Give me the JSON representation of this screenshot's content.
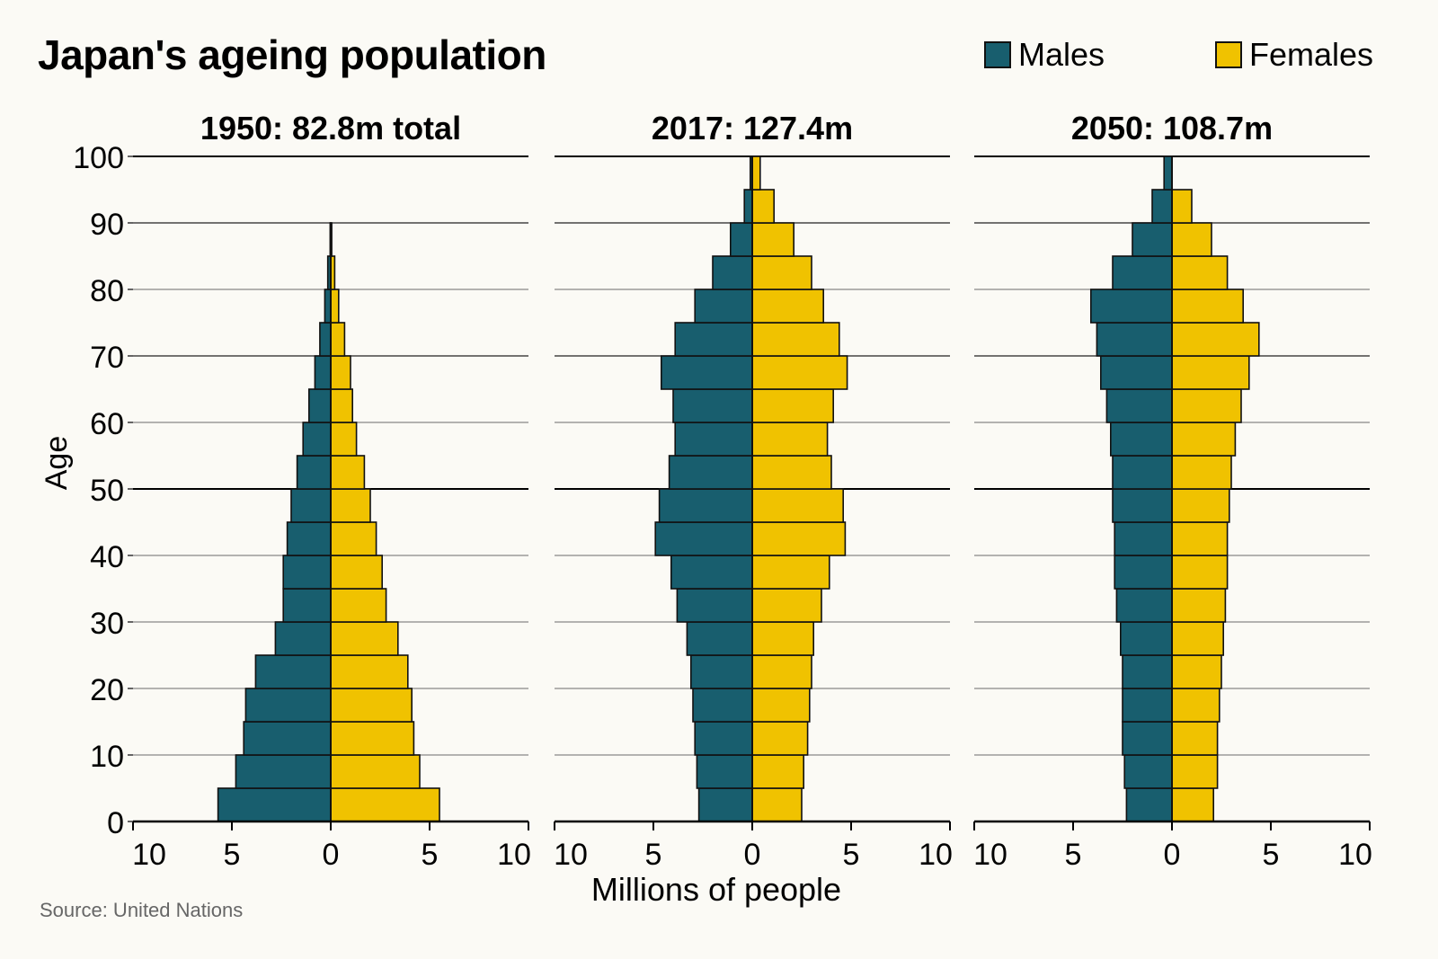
{
  "chart_data": {
    "type": "bar",
    "subtype": "population-pyramid",
    "title": "Japan's ageing population",
    "source": "Source: United Nations",
    "xlabel": "Millions of people",
    "ylabel": "Age",
    "legend": {
      "placement": "top-right",
      "entries": [
        {
          "name": "Males",
          "color": "#185e6e"
        },
        {
          "name": "Females",
          "color": "#f0c200"
        }
      ]
    },
    "y_ticks": [
      "0",
      "10",
      "20",
      "30",
      "40",
      "50",
      "60",
      "70",
      "80",
      "90",
      "100"
    ],
    "ylim": [
      0,
      100
    ],
    "x_ticks": [
      "10",
      "5",
      "0",
      "5",
      "10"
    ],
    "xlim": [
      -10,
      10
    ],
    "age_groups": [
      "0-4",
      "5-9",
      "10-14",
      "15-19",
      "20-24",
      "25-29",
      "30-34",
      "35-39",
      "40-44",
      "45-49",
      "50-54",
      "55-59",
      "60-64",
      "65-69",
      "70-74",
      "75-79",
      "80-84",
      "85-89",
      "90-94",
      "95-99"
    ],
    "panels": [
      {
        "title": "1950: 82.8m total",
        "series": [
          {
            "name": "Males",
            "values": [
              5.7,
              4.8,
              4.4,
              4.3,
              3.8,
              2.8,
              2.4,
              2.4,
              2.2,
              2.0,
              1.7,
              1.4,
              1.1,
              0.8,
              0.55,
              0.3,
              0.15,
              0.03,
              0.0,
              0.0
            ]
          },
          {
            "name": "Females",
            "values": [
              5.5,
              4.5,
              4.2,
              4.1,
              3.9,
              3.4,
              2.8,
              2.6,
              2.3,
              2.0,
              1.7,
              1.3,
              1.1,
              1.0,
              0.7,
              0.4,
              0.2,
              0.05,
              0.0,
              0.0
            ]
          }
        ]
      },
      {
        "title": "2017: 127.4m",
        "series": [
          {
            "name": "Males",
            "values": [
              2.7,
              2.8,
              2.9,
              3.0,
              3.1,
              3.3,
              3.8,
              4.1,
              4.9,
              4.7,
              4.2,
              3.9,
              4.0,
              4.6,
              3.9,
              2.9,
              2.0,
              1.1,
              0.4,
              0.1
            ]
          },
          {
            "name": "Females",
            "values": [
              2.5,
              2.6,
              2.8,
              2.9,
              3.0,
              3.1,
              3.5,
              3.9,
              4.7,
              4.6,
              4.0,
              3.8,
              4.1,
              4.8,
              4.4,
              3.6,
              3.0,
              2.1,
              1.1,
              0.4
            ]
          }
        ]
      },
      {
        "title": "2050: 108.7m",
        "series": [
          {
            "name": "Males",
            "values": [
              2.3,
              2.4,
              2.5,
              2.5,
              2.5,
              2.6,
              2.8,
              2.9,
              2.9,
              3.0,
              3.0,
              3.1,
              3.3,
              3.6,
              3.8,
              4.1,
              3.0,
              2.0,
              1.0,
              0.4
            ]
          },
          {
            "name": "Females",
            "values": [
              2.1,
              2.3,
              2.3,
              2.4,
              2.5,
              2.6,
              2.7,
              2.8,
              2.8,
              2.9,
              3.0,
              3.2,
              3.5,
              3.9,
              4.4,
              3.6,
              2.8,
              2.0,
              1.0,
              0.0
            ]
          }
        ]
      }
    ]
  }
}
